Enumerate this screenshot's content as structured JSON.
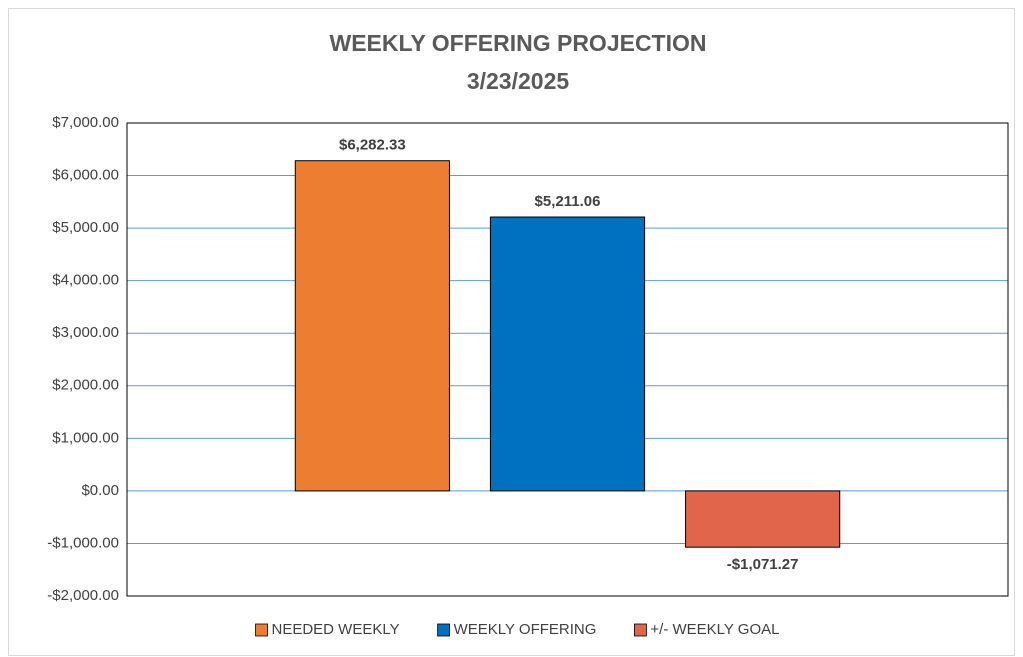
{
  "chart_data": {
    "type": "bar",
    "title": "WEEKLY OFFERING PROJECTION",
    "subtitle": "3/23/2025",
    "categories": [
      null
    ],
    "series": [
      {
        "name": "NEEDED WEEKLY",
        "color": "#ed7d31",
        "values": [
          6282.33
        ],
        "value_labels": [
          "$6,282.33"
        ]
      },
      {
        "name": "WEEKLY OFFERING",
        "color": "#0070c0",
        "values": [
          5211.06
        ],
        "value_labels": [
          "$5,211.06"
        ]
      },
      {
        "name": "+/- WEEKLY GOAL",
        "color": "#e0654b",
        "values": [
          -1071.27
        ],
        "value_labels": [
          "-$1,071.27"
        ]
      }
    ],
    "ylim": [
      -2000,
      7000
    ],
    "yticks": [
      {
        "value": -2000,
        "label": "-$2,000.00"
      },
      {
        "value": -1000,
        "label": "-$1,000.00"
      },
      {
        "value": 0,
        "label": "$0.00"
      },
      {
        "value": 1000,
        "label": "$1,000.00"
      },
      {
        "value": 2000,
        "label": "$2,000.00"
      },
      {
        "value": 3000,
        "label": "$3,000.00"
      },
      {
        "value": 4000,
        "label": "$4,000.00"
      },
      {
        "value": 5000,
        "label": "$5,000.00"
      },
      {
        "value": 6000,
        "label": "$6,000.00"
      },
      {
        "value": 7000,
        "label": "$7,000.00"
      }
    ],
    "grid": true,
    "legend": "bottom"
  }
}
